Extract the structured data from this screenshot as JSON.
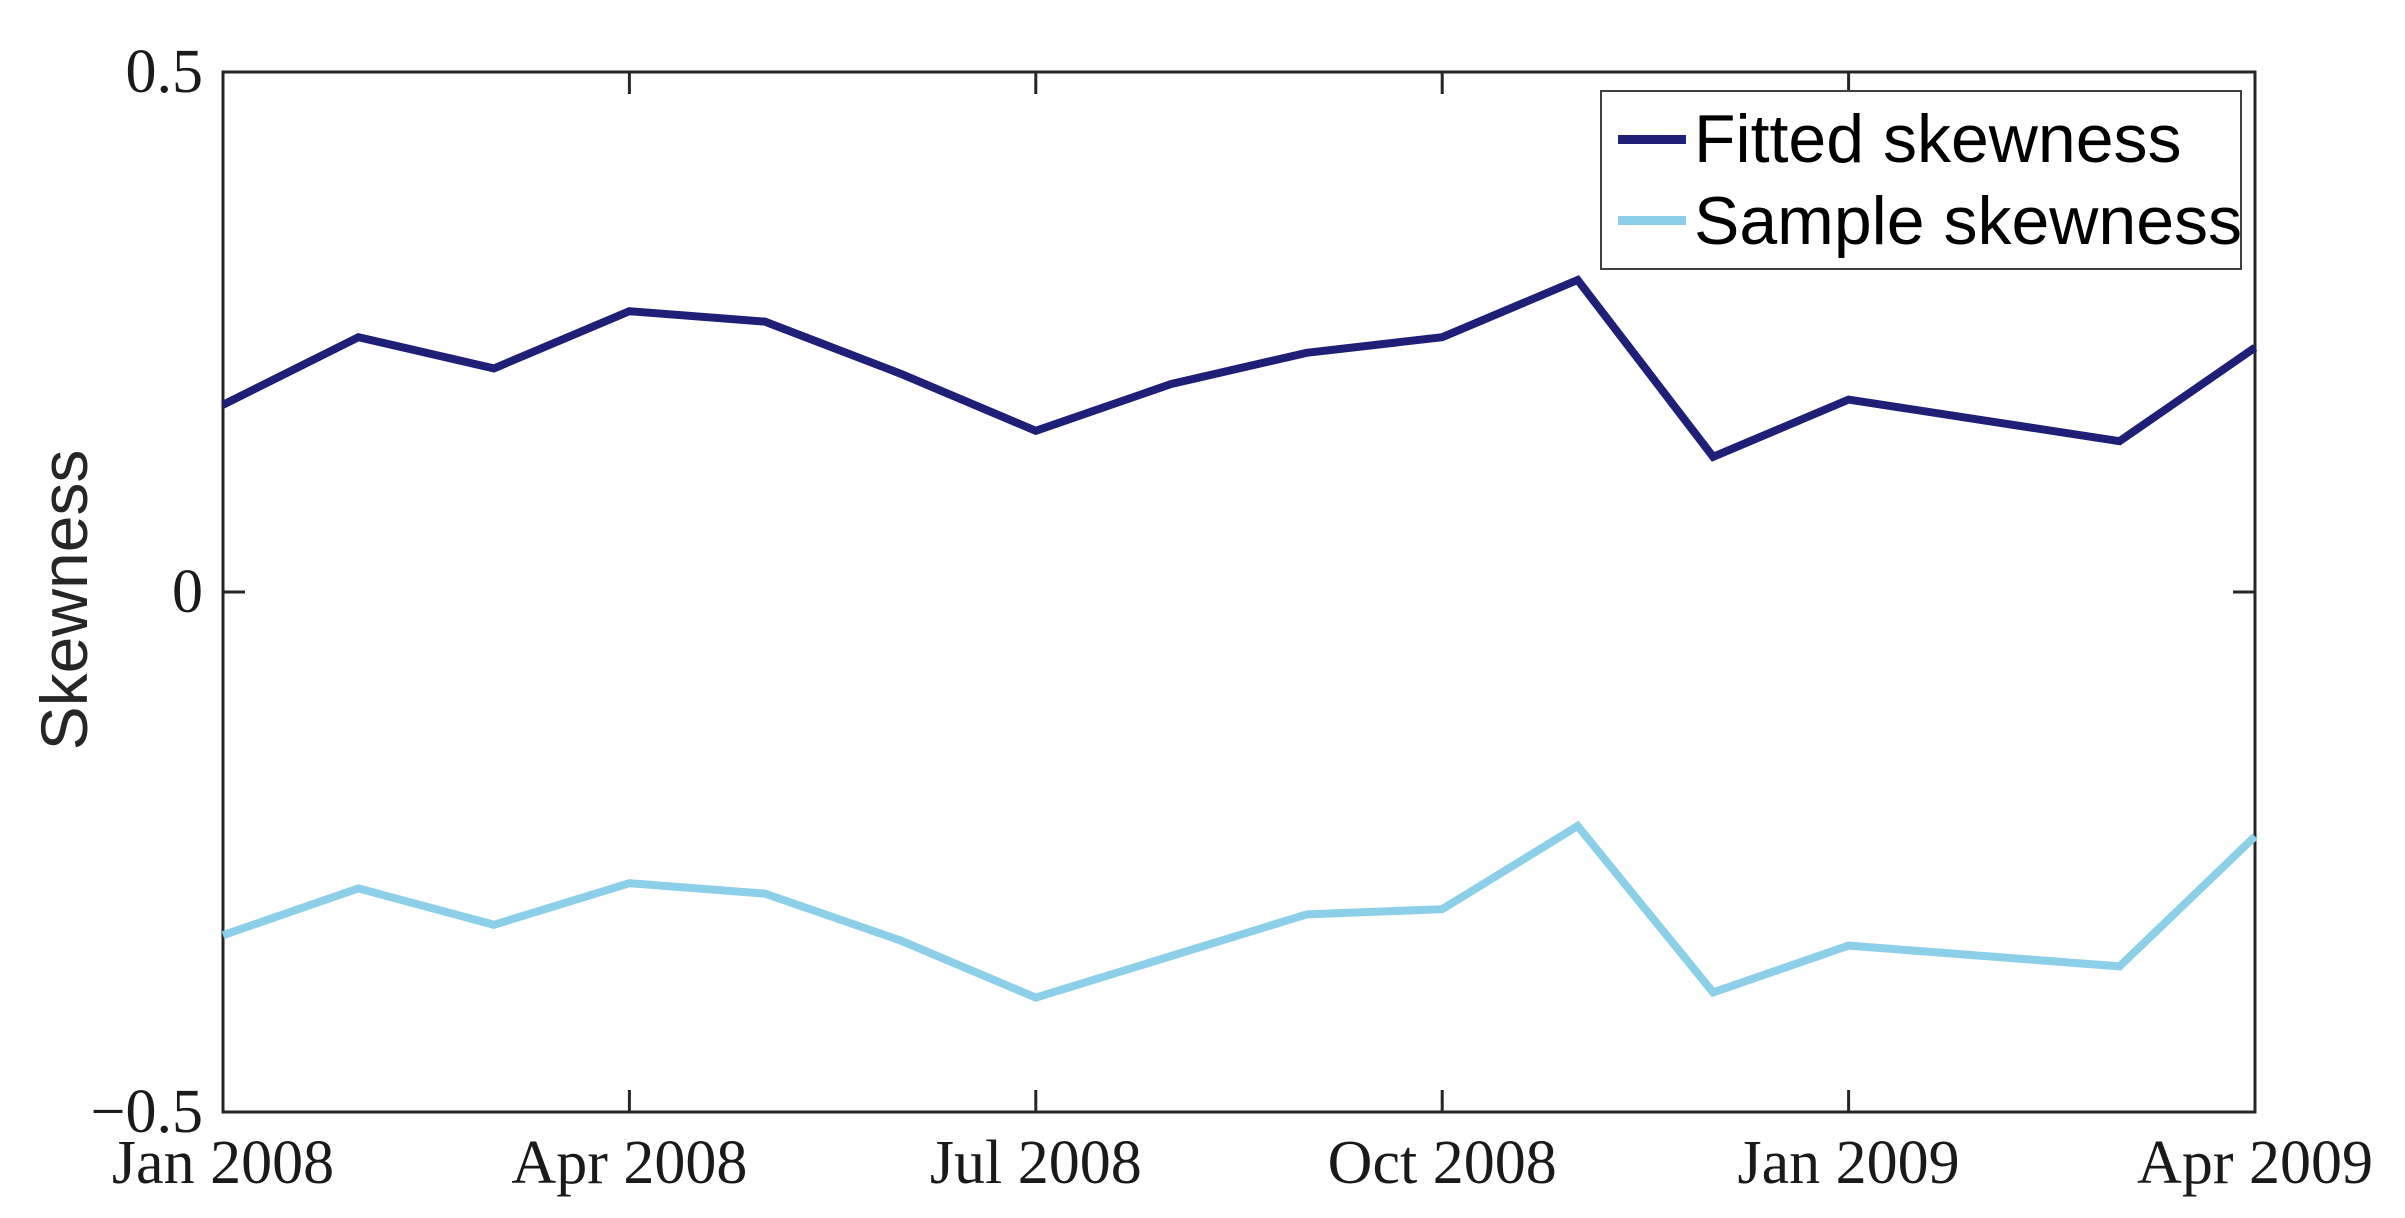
{
  "figure": {
    "background": "#ffffff",
    "axis_color": "#262626",
    "plot_border": "box"
  },
  "legend": {
    "position": "top-right",
    "items": [
      {
        "label": "Fitted skewness",
        "color": "#1f1f78"
      },
      {
        "label": "Sample skewness",
        "color": "#8ccfe9"
      }
    ]
  },
  "chart_data": {
    "type": "line",
    "title": "",
    "xlabel": "",
    "ylabel": "Skewness",
    "ylim": [
      -0.5,
      0.5
    ],
    "grid": false,
    "legend_position": "top-right",
    "x": [
      "Jan 2008",
      "Feb 2008",
      "Mar 2008",
      "Apr 2008",
      "May 2008",
      "Jun 2008",
      "Jul 2008",
      "Aug 2008",
      "Sep 2008",
      "Oct 2008",
      "Nov 2008",
      "Dec 2008",
      "Jan 2009",
      "Feb 2009",
      "Mar 2009",
      "Apr 2009"
    ],
    "x_tick_positions": [
      0,
      3,
      6,
      9,
      12,
      15
    ],
    "x_tick_labels": [
      "Jan 2008",
      "Apr 2008",
      "Jul 2008",
      "Oct 2008",
      "Jan 2009",
      "Apr 2009"
    ],
    "y_ticks": [
      0.5,
      0,
      -0.5
    ],
    "y_tick_labels": [
      "0.5",
      "0",
      "−0.5"
    ],
    "series": [
      {
        "name": "Fitted skewness",
        "color": "#1f1f78",
        "values": [
          0.18,
          0.245,
          0.215,
          0.27,
          0.26,
          0.21,
          0.155,
          0.2,
          0.23,
          0.245,
          0.3,
          0.13,
          0.185,
          0.165,
          0.145,
          0.235
        ]
      },
      {
        "name": "Sample skewness",
        "color": "#8ccfe9",
        "values": [
          -0.33,
          -0.285,
          -0.32,
          -0.28,
          -0.29,
          -0.335,
          -0.39,
          -0.35,
          -0.31,
          -0.305,
          -0.225,
          -0.385,
          -0.34,
          -0.35,
          -0.36,
          -0.235
        ]
      }
    ]
  }
}
